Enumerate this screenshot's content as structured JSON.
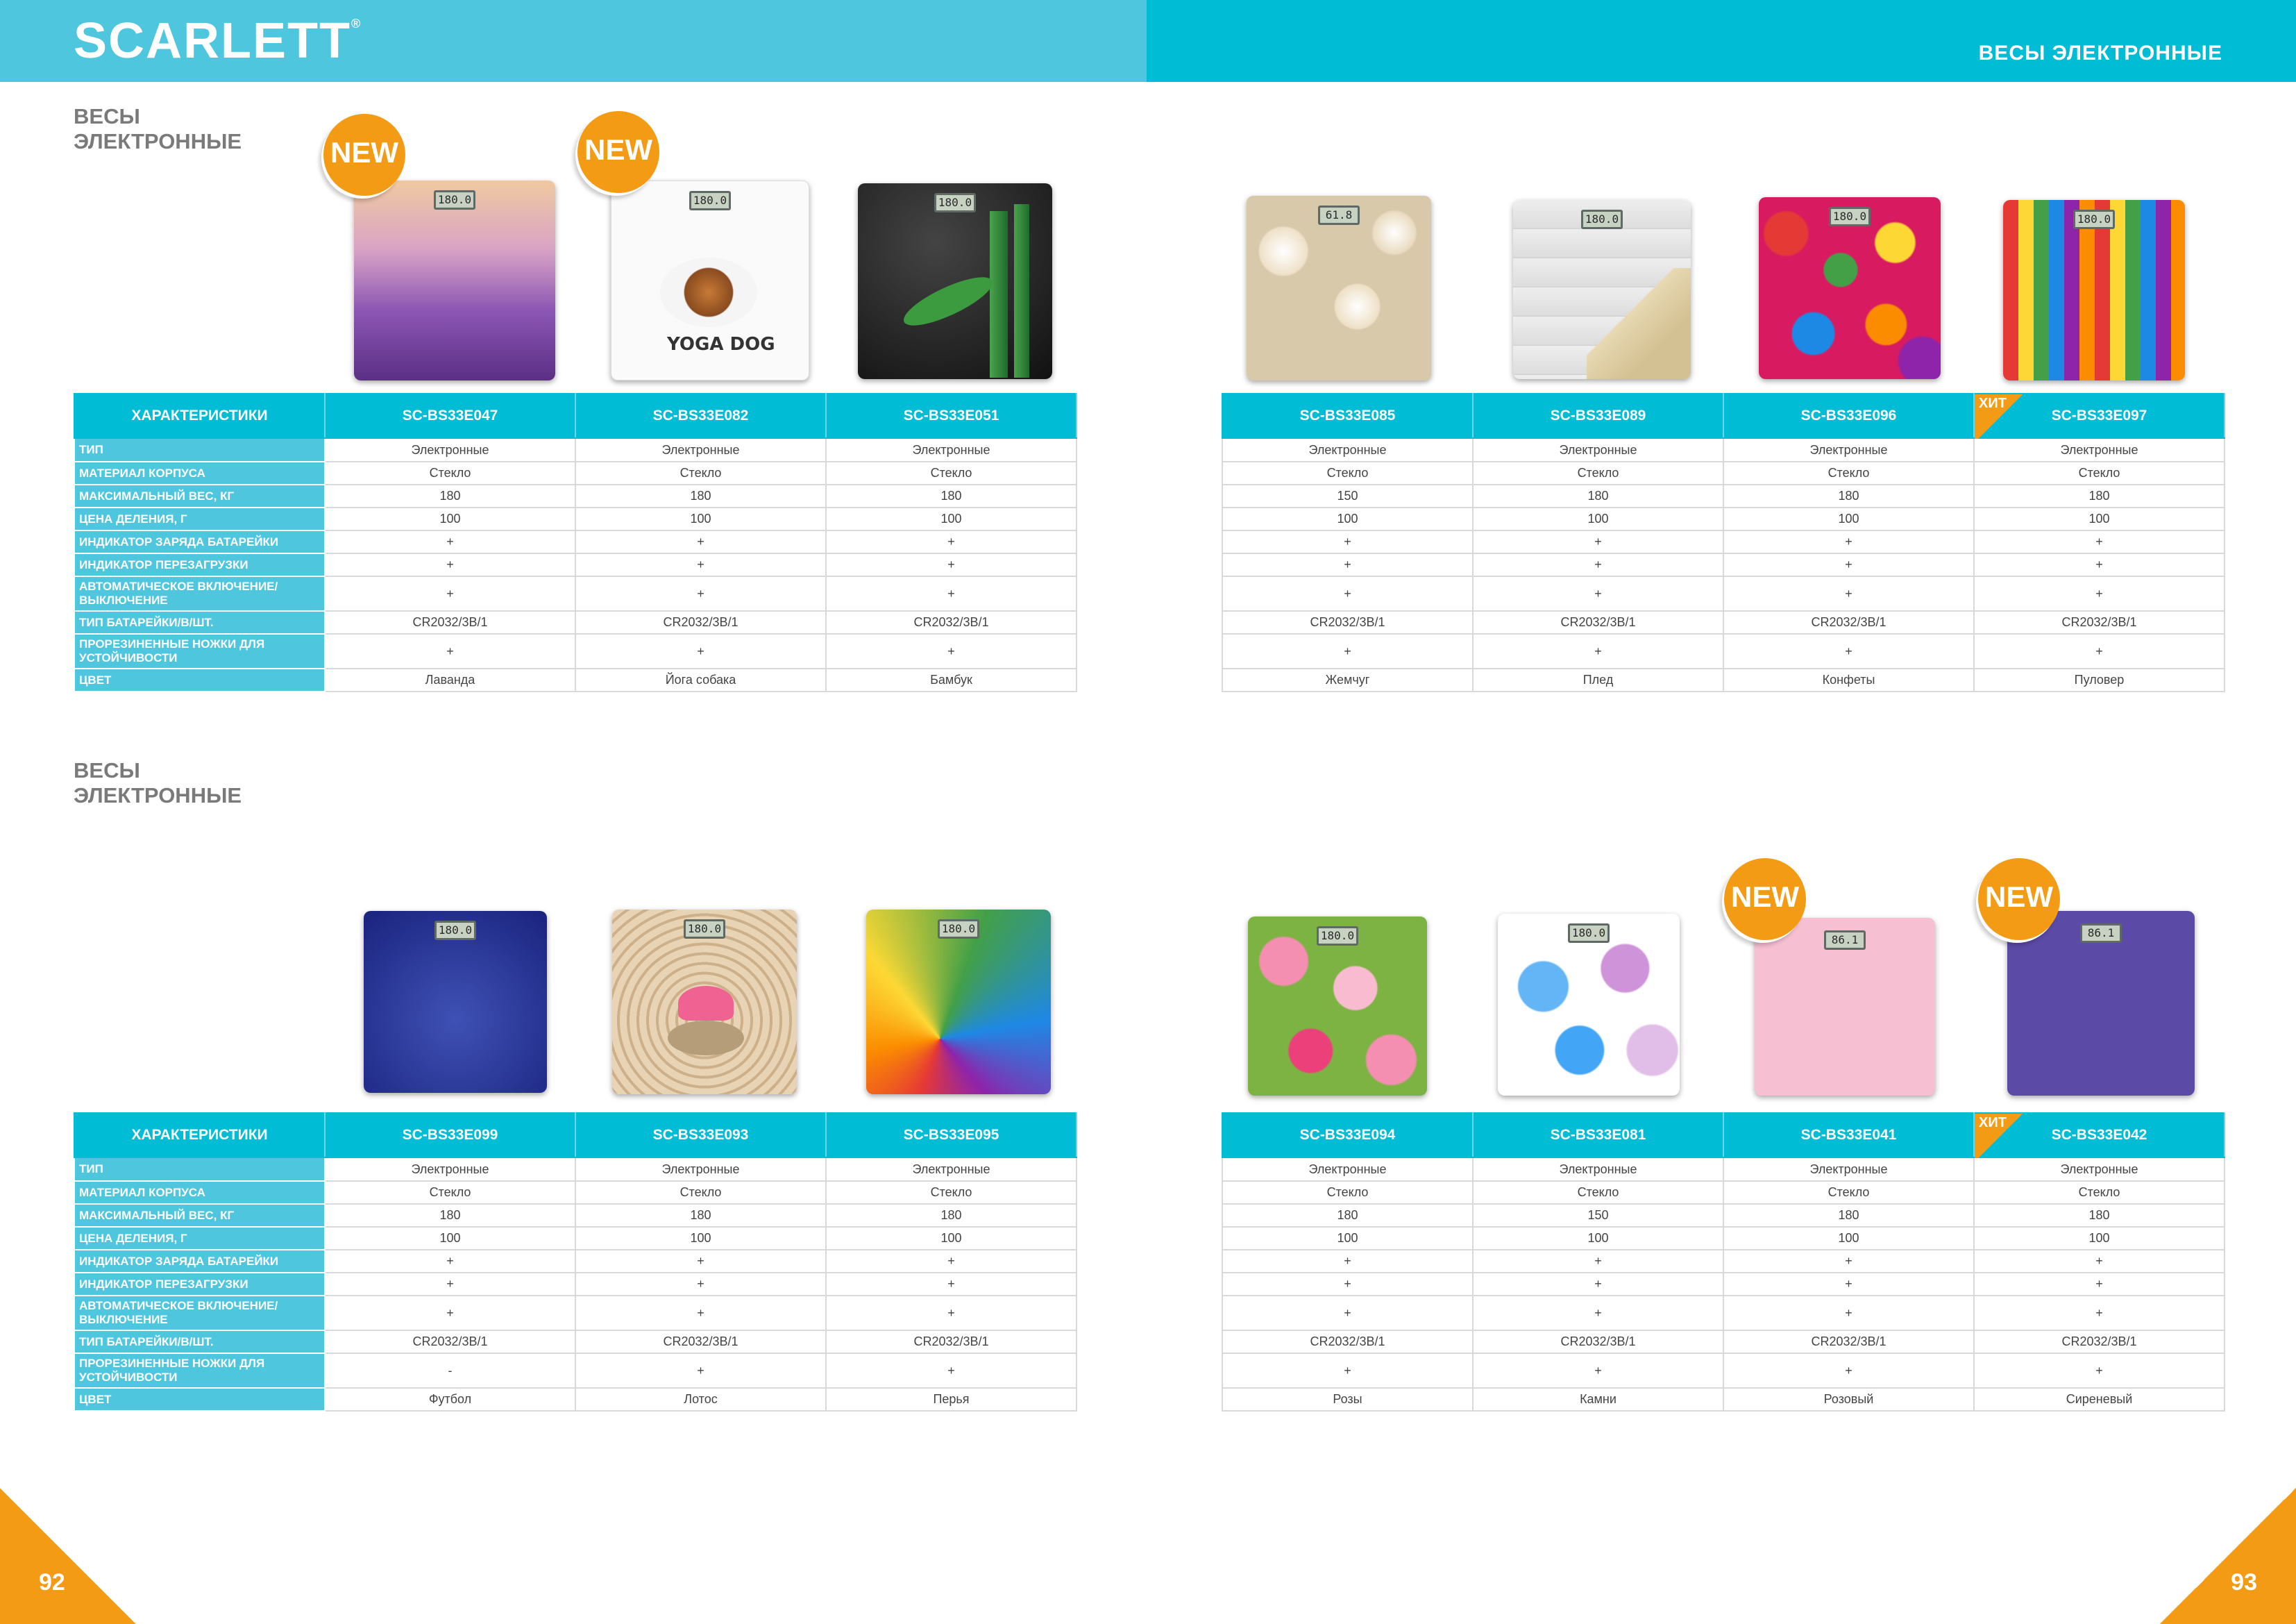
{
  "header": {
    "brand": "SCARLETT",
    "brand_mark": "®",
    "title": "ВЕСЫ ЭЛЕКТРОННЫЕ"
  },
  "sections": [
    {
      "title_line1": "ВЕСЫ",
      "title_line2": "ЭЛЕКТРОННЫЕ"
    },
    {
      "title_line1": "ВЕСЫ",
      "title_line2": "ЭЛЕКТРОННЫЕ"
    }
  ],
  "badges": {
    "new": "NEW",
    "hit": "ХИТ"
  },
  "spec_header": "ХАРАКТЕРИСТИКИ",
  "spec_labels": [
    "ТИП",
    "МАТЕРИАЛ КОРПУСА",
    "МАКСИМАЛЬНЫЙ ВЕС, КГ",
    "ЦЕНА ДЕЛЕНИЯ, Г",
    "ИНДИКАТОР ЗАРЯДА БАТАРЕЙКИ",
    "ИНДИКАТОР ПЕРЕЗАГРУЗКИ",
    "АВТОМАТИЧЕСКОЕ ВКЛЮЧЕНИЕ/ ВЫКЛЮЧЕНИЕ",
    "ТИП БАТАРЕЙКИ/В/ШТ.",
    "ПРОРЕЗИНЕННЫЕ НОЖКИ ДЛЯ УСТОЙЧИВОСТИ",
    "ЦВЕТ"
  ],
  "tables": {
    "t1": {
      "models": [
        {
          "model": "SC-BS33E047",
          "lcd": "180.0",
          "values": [
            "Электронные",
            "Стекло",
            "180",
            "100",
            "+",
            "+",
            "+",
            "CR2032/3В/1",
            "+",
            "Лаванда"
          ]
        },
        {
          "model": "SC-BS33E082",
          "lcd": "180.0",
          "values": [
            "Электронные",
            "Стекло",
            "180",
            "100",
            "+",
            "+",
            "+",
            "CR2032/3В/1",
            "+",
            "Йога собака"
          ]
        },
        {
          "model": "SC-BS33E051",
          "lcd": "180.0",
          "values": [
            "Электронные",
            "Стекло",
            "180",
            "100",
            "+",
            "+",
            "+",
            "CR2032/3В/1",
            "+",
            "Бамбук"
          ]
        }
      ]
    },
    "t2": {
      "models": [
        {
          "model": "SC-BS33E085",
          "lcd": "61.8",
          "values": [
            "Электронные",
            "Стекло",
            "150",
            "100",
            "+",
            "+",
            "+",
            "CR2032/3В/1",
            "+",
            "Жемчуг"
          ]
        },
        {
          "model": "SC-BS33E089",
          "lcd": "180.0",
          "values": [
            "Электронные",
            "Стекло",
            "180",
            "100",
            "+",
            "+",
            "+",
            "CR2032/3В/1",
            "+",
            "Плед"
          ]
        },
        {
          "model": "SC-BS33E096",
          "lcd": "180.0",
          "values": [
            "Электронные",
            "Стекло",
            "180",
            "100",
            "+",
            "+",
            "+",
            "CR2032/3В/1",
            "+",
            "Конфеты"
          ]
        },
        {
          "model": "SC-BS33E097",
          "lcd": "180.0",
          "values": [
            "Электронные",
            "Стекло",
            "180",
            "100",
            "+",
            "+",
            "+",
            "CR2032/3В/1",
            "+",
            "Пуловер"
          ]
        }
      ]
    },
    "t3": {
      "models": [
        {
          "model": "SC-BS33E099",
          "lcd": "180.0",
          "values": [
            "Электронные",
            "Стекло",
            "180",
            "100",
            "+",
            "+",
            "+",
            "CR2032/3В/1",
            "-",
            "Футбол"
          ]
        },
        {
          "model": "SC-BS33E093",
          "lcd": "180.0",
          "values": [
            "Электронные",
            "Стекло",
            "180",
            "100",
            "+",
            "+",
            "+",
            "CR2032/3В/1",
            "+",
            "Лотос"
          ]
        },
        {
          "model": "SC-BS33E095",
          "lcd": "180.0",
          "values": [
            "Электронные",
            "Стекло",
            "180",
            "100",
            "+",
            "+",
            "+",
            "CR2032/3В/1",
            "+",
            "Перья"
          ]
        }
      ]
    },
    "t4": {
      "models": [
        {
          "model": "SC-BS33E094",
          "lcd": "180.0",
          "values": [
            "Электронные",
            "Стекло",
            "180",
            "100",
            "+",
            "+",
            "+",
            "CR2032/3В/1",
            "+",
            "Розы"
          ]
        },
        {
          "model": "SC-BS33E081",
          "lcd": "180.0",
          "values": [
            "Электронные",
            "Стекло",
            "150",
            "100",
            "+",
            "+",
            "+",
            "CR2032/3В/1",
            "+",
            "Камни"
          ]
        },
        {
          "model": "SC-BS33E041",
          "lcd": "86.1",
          "values": [
            "Электронные",
            "Стекло",
            "180",
            "100",
            "+",
            "+",
            "+",
            "CR2032/3В/1",
            "+",
            "Розовый"
          ]
        },
        {
          "model": "SC-BS33E042",
          "lcd": "86.1",
          "values": [
            "Электронные",
            "Стекло",
            "180",
            "100",
            "+",
            "+",
            "+",
            "CR2032/3В/1",
            "+",
            "Сиреневый"
          ]
        }
      ]
    }
  },
  "page_numbers": {
    "left": "92",
    "right": "93"
  },
  "colors": {
    "accent": "#00bcd4",
    "accent_light": "#4ec6de",
    "orange": "#f49b15"
  }
}
